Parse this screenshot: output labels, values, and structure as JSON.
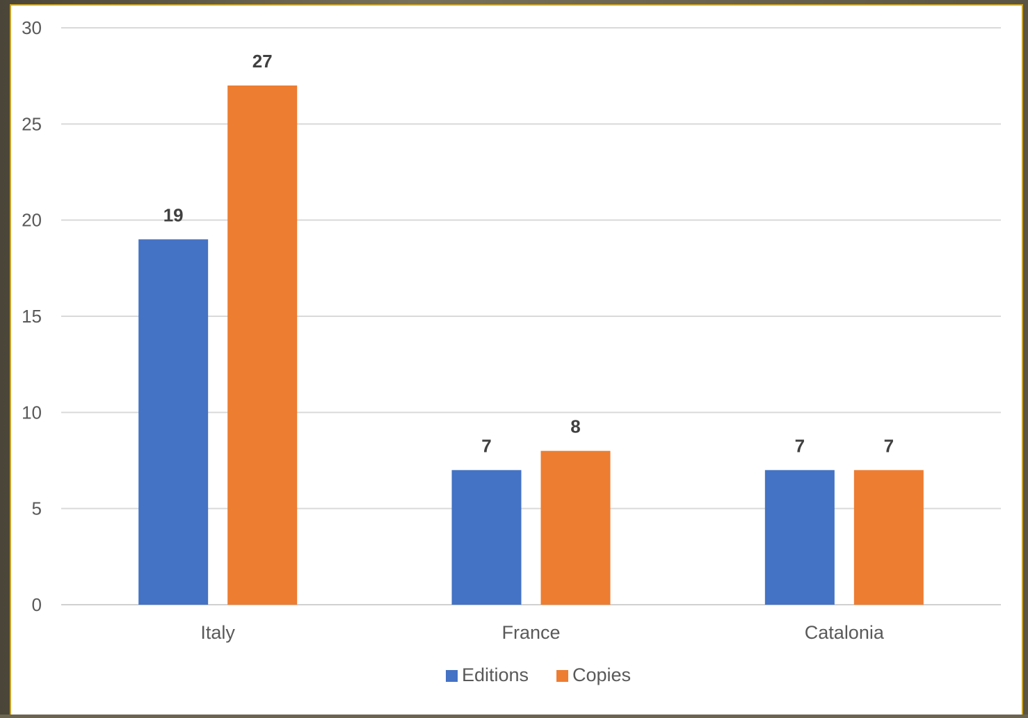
{
  "chart_data": {
    "type": "bar",
    "categories": [
      "Italy",
      "France",
      "Catalonia"
    ],
    "series": [
      {
        "name": "Editions",
        "values": [
          19,
          7,
          7
        ],
        "color": "#4472C4"
      },
      {
        "name": "Copies",
        "values": [
          27,
          8,
          7
        ],
        "color": "#ED7D31"
      }
    ],
    "ylim": [
      0,
      30
    ],
    "yticks": [
      0,
      5,
      10,
      15,
      20,
      25,
      30
    ],
    "grid": true,
    "legend": "bottom",
    "data_labels": true
  }
}
